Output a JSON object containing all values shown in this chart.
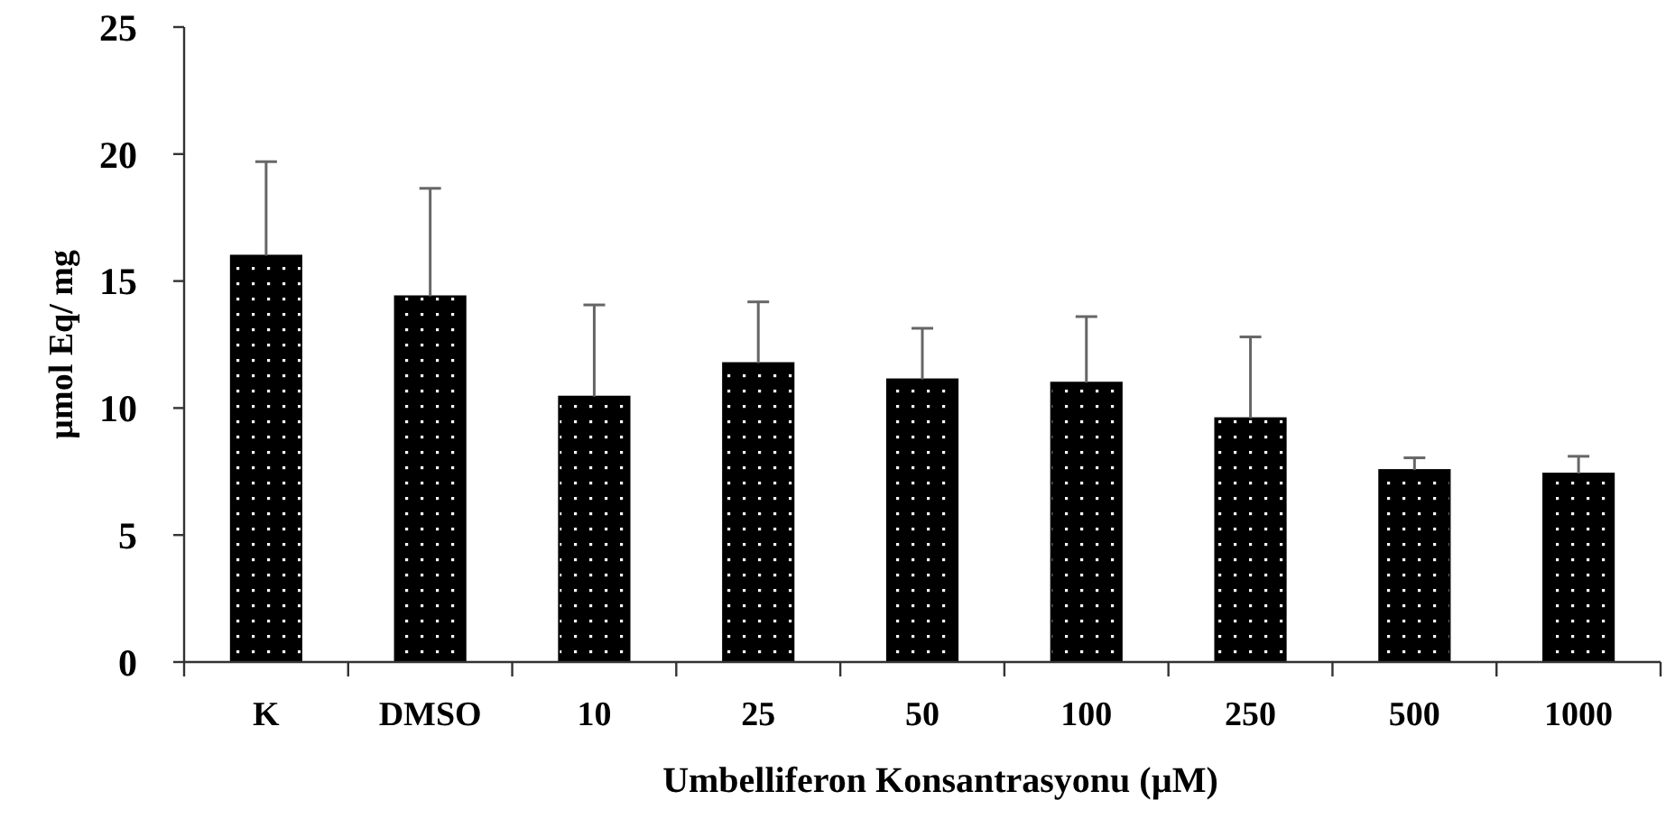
{
  "chart_data": {
    "type": "bar",
    "xlabel": "Umbelliferon Konsantrasyonu (µM)",
    "ylabel": "µmol Eq/ mg",
    "categories": [
      "K",
      "DMSO",
      "10",
      "25",
      "50",
      "100",
      "250",
      "500",
      "1000"
    ],
    "values": [
      16.0,
      14.4,
      10.45,
      11.77,
      11.13,
      11.0,
      9.6,
      7.56,
      7.42
    ],
    "errors": [
      [
        16.0,
        19.7
      ],
      [
        14.4,
        18.65
      ],
      [
        10.45,
        14.06
      ],
      [
        11.77,
        14.18
      ],
      [
        11.13,
        13.14
      ],
      [
        11.0,
        13.6
      ],
      [
        9.6,
        12.8
      ],
      [
        7.56,
        8.04
      ],
      [
        7.42,
        8.1
      ]
    ],
    "color": "#000000",
    "ylim": [
      0,
      25
    ],
    "yticks": [
      0,
      5,
      10,
      15,
      20,
      25
    ],
    "grid": false
  }
}
